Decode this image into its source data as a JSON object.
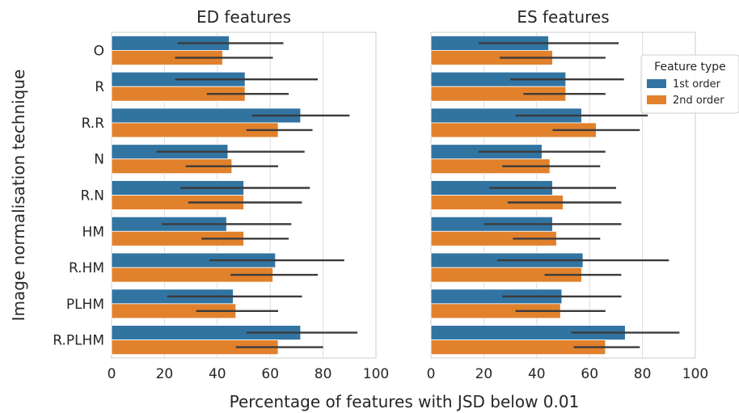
{
  "chart_data": {
    "type": "bar",
    "orientation": "horizontal",
    "xlabel": "Percentage of features with JSD below 0.01",
    "ylabel": "Image normalisation technique",
    "xlim": [
      0,
      100
    ],
    "xticks": [
      0,
      20,
      40,
      60,
      80,
      100
    ],
    "grid": "vertical",
    "categories": [
      "O",
      "R",
      "R.R",
      "N",
      "R.N",
      "HM",
      "R.HM",
      "PLHM",
      "R.PLHM"
    ],
    "legend": {
      "title": "Feature type",
      "placement": "right of second panel, top",
      "entries": [
        "1st order",
        "2nd order"
      ]
    },
    "colors": {
      "1st order": "#3274a1",
      "2nd order": "#e1812c",
      "error_bar": "#3b3b3b",
      "grid": "#dcdcdc"
    },
    "panels": [
      {
        "title": "ED features",
        "series": [
          {
            "name": "1st order",
            "values": [
              44.5,
              50.5,
              71.5,
              44,
              50,
              43.5,
              62,
              46,
              71.5
            ],
            "err_low": [
              25,
              24,
              53,
              17,
              26,
              19,
              37,
              21,
              51
            ],
            "err_high": [
              65,
              78,
              90,
              73,
              75,
              68,
              88,
              72,
              93
            ]
          },
          {
            "name": "2nd order",
            "values": [
              42,
              50.5,
              63,
              45.5,
              50,
              50,
              61,
              47,
              63
            ],
            "err_low": [
              24,
              36,
              51,
              28,
              29,
              34,
              45,
              32,
              47
            ],
            "err_high": [
              61,
              67,
              76,
              63,
              72,
              67,
              78,
              63,
              80
            ]
          }
        ]
      },
      {
        "title": "ES features",
        "series": [
          {
            "name": "1st order",
            "values": [
              44.5,
              51,
              57,
              42,
              46,
              46,
              57.5,
              49.5,
              73.5
            ],
            "err_low": [
              18,
              30,
              32,
              18,
              22,
              20,
              25,
              27,
              53
            ],
            "err_high": [
              71,
              73,
              82,
              66,
              70,
              72,
              90,
              72,
              94
            ]
          },
          {
            "name": "2nd order",
            "values": [
              46,
              51,
              62.5,
              45,
              50,
              47.5,
              57,
              49,
              66
            ],
            "err_low": [
              26,
              35,
              46,
              27,
              29,
              31,
              43,
              32,
              54
            ],
            "err_high": [
              66,
              66,
              79,
              64,
              72,
              64,
              72,
              66,
              79
            ]
          }
        ]
      }
    ]
  }
}
